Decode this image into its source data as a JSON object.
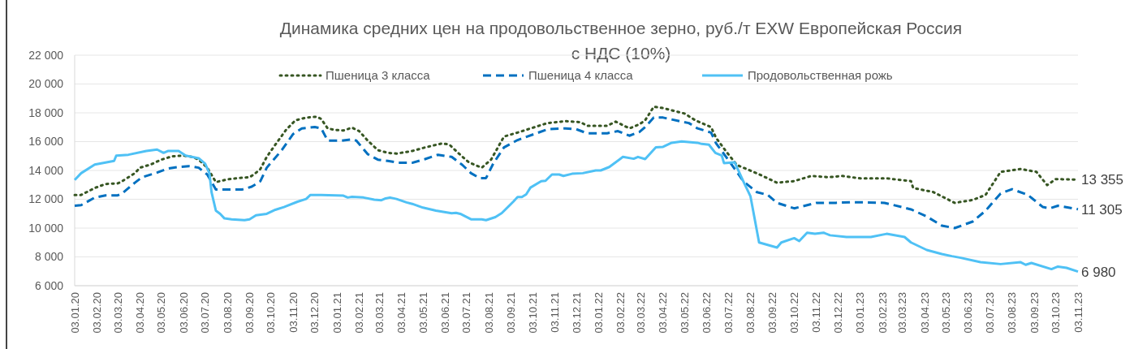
{
  "chart_data": {
    "type": "line",
    "title": "Динамика средних цен на продовольственное зерно, руб./т EXW Европейская Россия",
    "subtitle": "с НДС (10%)",
    "xlim": [
      "2020-01-03",
      "2023-11-03"
    ],
    "xticks": [
      {
        "value": "2020-01-03",
        "label": "03.01.20"
      },
      {
        "value": "2020-02-03",
        "label": "03.02.20"
      },
      {
        "value": "2020-03-03",
        "label": "03.03.20"
      },
      {
        "value": "2020-04-03",
        "label": "03.04.20"
      },
      {
        "value": "2020-05-03",
        "label": "03.05.20"
      },
      {
        "value": "2020-06-03",
        "label": "03.06.20"
      },
      {
        "value": "2020-07-03",
        "label": "03.07.20"
      },
      {
        "value": "2020-08-03",
        "label": "03.08.20"
      },
      {
        "value": "2020-09-03",
        "label": "03.09.20"
      },
      {
        "value": "2020-10-03",
        "label": "03.10.20"
      },
      {
        "value": "2020-11-03",
        "label": "03.11.20"
      },
      {
        "value": "2020-12-03",
        "label": "03.12.20"
      },
      {
        "value": "2021-01-03",
        "label": "03.01.21"
      },
      {
        "value": "2021-02-03",
        "label": "03.02.21"
      },
      {
        "value": "2021-03-03",
        "label": "03.03.21"
      },
      {
        "value": "2021-04-03",
        "label": "03.04.21"
      },
      {
        "value": "2021-05-03",
        "label": "03.05.21"
      },
      {
        "value": "2021-06-03",
        "label": "03.06.21"
      },
      {
        "value": "2021-07-03",
        "label": "03.07.21"
      },
      {
        "value": "2021-08-03",
        "label": "03.08.21"
      },
      {
        "value": "2021-09-03",
        "label": "03.09.21"
      },
      {
        "value": "2021-10-03",
        "label": "03.10.21"
      },
      {
        "value": "2021-11-03",
        "label": "03.11.21"
      },
      {
        "value": "2021-12-03",
        "label": "03.12.21"
      },
      {
        "value": "2022-01-03",
        "label": "03.01.22"
      },
      {
        "value": "2022-02-03",
        "label": "03.02.22"
      },
      {
        "value": "2022-03-03",
        "label": "03.03.22"
      },
      {
        "value": "2022-04-03",
        "label": "03.04.22"
      },
      {
        "value": "2022-05-03",
        "label": "03.05.22"
      },
      {
        "value": "2022-06-03",
        "label": "03.06.22"
      },
      {
        "value": "2022-07-03",
        "label": "03.07.22"
      },
      {
        "value": "2022-08-03",
        "label": "03.08.22"
      },
      {
        "value": "2022-09-03",
        "label": "03.09.22"
      },
      {
        "value": "2022-10-03",
        "label": "03.10.22"
      },
      {
        "value": "2022-11-03",
        "label": "03.11.22"
      },
      {
        "value": "2022-12-03",
        "label": "03.12.22"
      },
      {
        "value": "2023-01-03",
        "label": "03.01.23"
      },
      {
        "value": "2023-02-03",
        "label": "03.02.23"
      },
      {
        "value": "2023-03-03",
        "label": "03.03.23"
      },
      {
        "value": "2023-04-03",
        "label": "03.04.23"
      },
      {
        "value": "2023-05-03",
        "label": "03.05.23"
      },
      {
        "value": "2023-06-03",
        "label": "03.06.23"
      },
      {
        "value": "2023-07-03",
        "label": "03.07.23"
      },
      {
        "value": "2023-08-03",
        "label": "03.08.23"
      },
      {
        "value": "2023-09-03",
        "label": "03.09.23"
      },
      {
        "value": "2023-10-03",
        "label": "03.10.23"
      },
      {
        "value": "2023-11-03",
        "label": "03.11.23"
      }
    ],
    "ylim": [
      6000,
      22000
    ],
    "yticks": [
      {
        "value": 6000,
        "label": "6 000"
      },
      {
        "value": 8000,
        "label": "8 000"
      },
      {
        "value": 10000,
        "label": "10 000"
      },
      {
        "value": 12000,
        "label": "12 000"
      },
      {
        "value": 14000,
        "label": "14 000"
      },
      {
        "value": 16000,
        "label": "16 000"
      },
      {
        "value": 18000,
        "label": "18 000"
      },
      {
        "value": 20000,
        "label": "20 000"
      },
      {
        "value": 22000,
        "label": "22 000"
      }
    ],
    "grid": "y",
    "legend": "top",
    "series": [
      {
        "name": "Пшеница 3 класса",
        "color": "#375623",
        "line_style": "dotted",
        "x": [
          "2020-01-03",
          "2020-01-12",
          "2020-01-31",
          "2020-02-15",
          "2020-03-03",
          "2020-03-08",
          "2020-03-27",
          "2020-04-03",
          "2020-04-18",
          "2020-05-03",
          "2020-05-18",
          "2020-06-03",
          "2020-06-15",
          "2020-06-24",
          "2020-07-06",
          "2020-07-18",
          "2020-08-03",
          "2020-08-18",
          "2020-09-03",
          "2020-09-09",
          "2020-09-18",
          "2020-09-27",
          "2020-10-09",
          "2020-10-24",
          "2020-11-06",
          "2020-11-21",
          "2020-12-06",
          "2020-12-12",
          "2020-12-21",
          "2020-12-30",
          "2021-01-12",
          "2021-01-24",
          "2021-02-03",
          "2021-02-15",
          "2021-03-01",
          "2021-03-15",
          "2021-03-27",
          "2021-04-18",
          "2021-05-06",
          "2021-05-30",
          "2021-06-09",
          "2021-06-21",
          "2021-07-06",
          "2021-07-24",
          "2021-08-06",
          "2021-08-24",
          "2021-09-12",
          "2021-10-06",
          "2021-10-24",
          "2021-11-18",
          "2021-12-09",
          "2021-12-18",
          "2022-01-15",
          "2022-01-27",
          "2022-02-15",
          "2022-03-01",
          "2022-03-09",
          "2022-03-21",
          "2022-04-03",
          "2022-04-18",
          "2022-05-03",
          "2022-05-18",
          "2022-06-09",
          "2022-06-16",
          "2022-06-30",
          "2022-07-15",
          "2022-07-24",
          "2022-08-12",
          "2022-09-09",
          "2022-10-03",
          "2022-10-27",
          "2022-11-20",
          "2022-12-09",
          "2023-01-03",
          "2023-02-09",
          "2023-03-15",
          "2023-03-18",
          "2023-04-15",
          "2023-05-15",
          "2023-06-09",
          "2023-06-27",
          "2023-07-18",
          "2023-08-15",
          "2023-09-06",
          "2023-09-21",
          "2023-10-03",
          "2023-11-03"
        ],
        "values": [
          12300,
          12300,
          12780,
          13060,
          13100,
          13210,
          13810,
          14190,
          14410,
          14750,
          14980,
          15030,
          14940,
          14750,
          14190,
          13190,
          13380,
          13470,
          13530,
          13720,
          14090,
          14940,
          15790,
          16820,
          17480,
          17670,
          17730,
          17570,
          16920,
          16820,
          16770,
          16970,
          16730,
          16070,
          15410,
          15220,
          15170,
          15350,
          15600,
          15880,
          15790,
          15220,
          14560,
          14190,
          14750,
          16350,
          16630,
          17010,
          17290,
          17420,
          17350,
          17100,
          17100,
          17390,
          16920,
          17200,
          17480,
          18420,
          18330,
          18140,
          17950,
          17480,
          17010,
          16260,
          15320,
          14380,
          14190,
          13800,
          13150,
          13260,
          13620,
          13530,
          13620,
          13450,
          13450,
          13260,
          12780,
          12500,
          11750,
          11950,
          12300,
          13900,
          14100,
          13900,
          12980,
          13400,
          13355
        ]
      },
      {
        "name": "Пшеница 4 класса",
        "color": "#0070c0",
        "line_style": "dashed",
        "x": [
          "2020-01-03",
          "2020-01-12",
          "2020-01-31",
          "2020-02-15",
          "2020-03-03",
          "2020-03-09",
          "2020-03-27",
          "2020-04-06",
          "2020-04-27",
          "2020-05-12",
          "2020-05-27",
          "2020-06-10",
          "2020-06-24",
          "2020-07-06",
          "2020-07-18",
          "2020-08-06",
          "2020-08-24",
          "2020-09-06",
          "2020-09-18",
          "2020-09-27",
          "2020-10-18",
          "2020-11-03",
          "2020-11-15",
          "2020-12-03",
          "2020-12-12",
          "2020-12-21",
          "2021-01-09",
          "2021-01-24",
          "2021-01-30",
          "2021-02-15",
          "2021-03-01",
          "2021-03-15",
          "2021-03-30",
          "2021-04-18",
          "2021-05-06",
          "2021-05-24",
          "2021-06-12",
          "2021-06-27",
          "2021-07-09",
          "2021-07-21",
          "2021-07-30",
          "2021-08-09",
          "2021-08-24",
          "2021-09-12",
          "2021-10-06",
          "2021-10-24",
          "2021-11-18",
          "2021-12-03",
          "2021-12-18",
          "2022-01-15",
          "2022-01-30",
          "2022-02-15",
          "2022-03-01",
          "2022-03-09",
          "2022-03-21",
          "2022-04-03",
          "2022-04-29",
          "2022-05-09",
          "2022-05-21",
          "2022-06-09",
          "2022-06-16",
          "2022-06-30",
          "2022-07-15",
          "2022-07-24",
          "2022-08-12",
          "2022-08-27",
          "2022-09-09",
          "2022-10-03",
          "2022-11-03",
          "2022-11-30",
          "2022-12-22",
          "2023-02-06",
          "2023-03-15",
          "2023-04-06",
          "2023-04-27",
          "2023-05-15",
          "2023-06-09",
          "2023-06-27",
          "2023-07-18",
          "2023-08-03",
          "2023-08-25",
          "2023-09-15",
          "2023-09-25",
          "2023-10-06",
          "2023-11-03"
        ],
        "values": [
          11550,
          11590,
          12120,
          12270,
          12270,
          12400,
          13150,
          13530,
          13850,
          14130,
          14240,
          14300,
          14190,
          13720,
          12680,
          12680,
          12680,
          12870,
          13250,
          14190,
          15410,
          16540,
          16920,
          17010,
          16920,
          16070,
          16070,
          16160,
          16070,
          15130,
          14750,
          14660,
          14530,
          14530,
          14790,
          15090,
          14940,
          14380,
          13810,
          13470,
          13470,
          14470,
          15600,
          16110,
          16540,
          16860,
          16920,
          16860,
          16580,
          16580,
          16730,
          16410,
          16670,
          17010,
          17670,
          17670,
          17390,
          17290,
          16920,
          16630,
          15880,
          14940,
          13900,
          13250,
          12490,
          12300,
          11750,
          11370,
          11750,
          11750,
          11800,
          11750,
          11300,
          10800,
          10170,
          10000,
          10450,
          11200,
          12400,
          12700,
          12300,
          11460,
          11370,
          11550,
          11305
        ]
      },
      {
        "name": "Продовольственная рожь",
        "color": "#4fc1f5",
        "line_style": "solid",
        "x": [
          "2020-01-03",
          "2020-01-12",
          "2020-01-31",
          "2020-02-27",
          "2020-03-01",
          "2020-03-18",
          "2020-04-12",
          "2020-04-27",
          "2020-05-06",
          "2020-05-12",
          "2020-05-27",
          "2020-06-06",
          "2020-06-24",
          "2020-07-03",
          "2020-07-09",
          "2020-07-12",
          "2020-07-18",
          "2020-07-24",
          "2020-07-30",
          "2020-08-09",
          "2020-08-27",
          "2020-09-03",
          "2020-09-12",
          "2020-09-27",
          "2020-10-09",
          "2020-10-21",
          "2020-11-09",
          "2020-11-21",
          "2020-11-27",
          "2020-12-12",
          "2021-01-12",
          "2021-01-18",
          "2021-01-24",
          "2021-02-09",
          "2021-02-24",
          "2021-03-06",
          "2021-03-12",
          "2021-03-18",
          "2021-03-27",
          "2021-04-10",
          "2021-04-18",
          "2021-05-03",
          "2021-05-21",
          "2021-06-12",
          "2021-06-18",
          "2021-06-24",
          "2021-07-09",
          "2021-07-24",
          "2021-07-30",
          "2021-08-12",
          "2021-08-21",
          "2021-09-06",
          "2021-09-12",
          "2021-09-18",
          "2021-09-24",
          "2021-09-30",
          "2021-10-15",
          "2021-10-21",
          "2021-10-30",
          "2021-11-09",
          "2021-11-15",
          "2021-11-27",
          "2021-12-12",
          "2021-12-30",
          "2022-01-06",
          "2022-01-18",
          "2022-02-06",
          "2022-02-21",
          "2022-02-27",
          "2022-03-09",
          "2022-03-24",
          "2022-04-03",
          "2022-04-15",
          "2022-04-29",
          "2022-05-21",
          "2022-05-27",
          "2022-06-06",
          "2022-06-15",
          "2022-06-24",
          "2022-06-27",
          "2022-07-12",
          "2022-07-24",
          "2022-08-03",
          "2022-08-15",
          "2022-09-09",
          "2022-09-15",
          "2022-10-03",
          "2022-10-10",
          "2022-10-21",
          "2022-11-01",
          "2022-11-13",
          "2022-11-22",
          "2022-12-15",
          "2023-01-18",
          "2023-02-09",
          "2023-03-06",
          "2023-03-15",
          "2023-04-06",
          "2023-04-27",
          "2023-05-11",
          "2023-05-22",
          "2023-06-20",
          "2023-07-18",
          "2023-08-15",
          "2023-08-22",
          "2023-08-30",
          "2023-09-27",
          "2023-10-06",
          "2023-10-18",
          "2023-11-03"
        ],
        "values": [
          13340,
          13810,
          14410,
          14660,
          15030,
          15090,
          15350,
          15450,
          15220,
          15350,
          15350,
          15030,
          14850,
          14470,
          13810,
          12490,
          11210,
          10990,
          10670,
          10610,
          10550,
          10610,
          10890,
          10990,
          11270,
          11460,
          11830,
          12020,
          12300,
          12300,
          12250,
          12120,
          12170,
          12120,
          11970,
          11930,
          12060,
          12120,
          12020,
          11780,
          11680,
          11420,
          11210,
          11030,
          11060,
          10990,
          10610,
          10610,
          10550,
          10760,
          11040,
          11830,
          12150,
          12150,
          12340,
          12810,
          13250,
          13280,
          13720,
          13720,
          13620,
          13770,
          13810,
          14000,
          14000,
          14240,
          14940,
          14810,
          14940,
          14790,
          15600,
          15640,
          15920,
          16010,
          15920,
          15840,
          15790,
          15220,
          15030,
          14510,
          14560,
          13250,
          12200,
          9000,
          8650,
          9000,
          9300,
          9100,
          9680,
          9600,
          9680,
          9500,
          9380,
          9380,
          9600,
          9380,
          9000,
          8480,
          8200,
          8050,
          7950,
          7630,
          7500,
          7630,
          7450,
          7580,
          7150,
          7330,
          7240,
          6980
        ]
      }
    ],
    "annotations": [
      {
        "text": "13 355",
        "x": "2023-11-03",
        "y": 13355
      },
      {
        "text": "11 305",
        "x": "2023-11-03",
        "y": 11305
      },
      {
        "text": "6 980",
        "x": "2023-11-03",
        "y": 6980
      }
    ]
  }
}
